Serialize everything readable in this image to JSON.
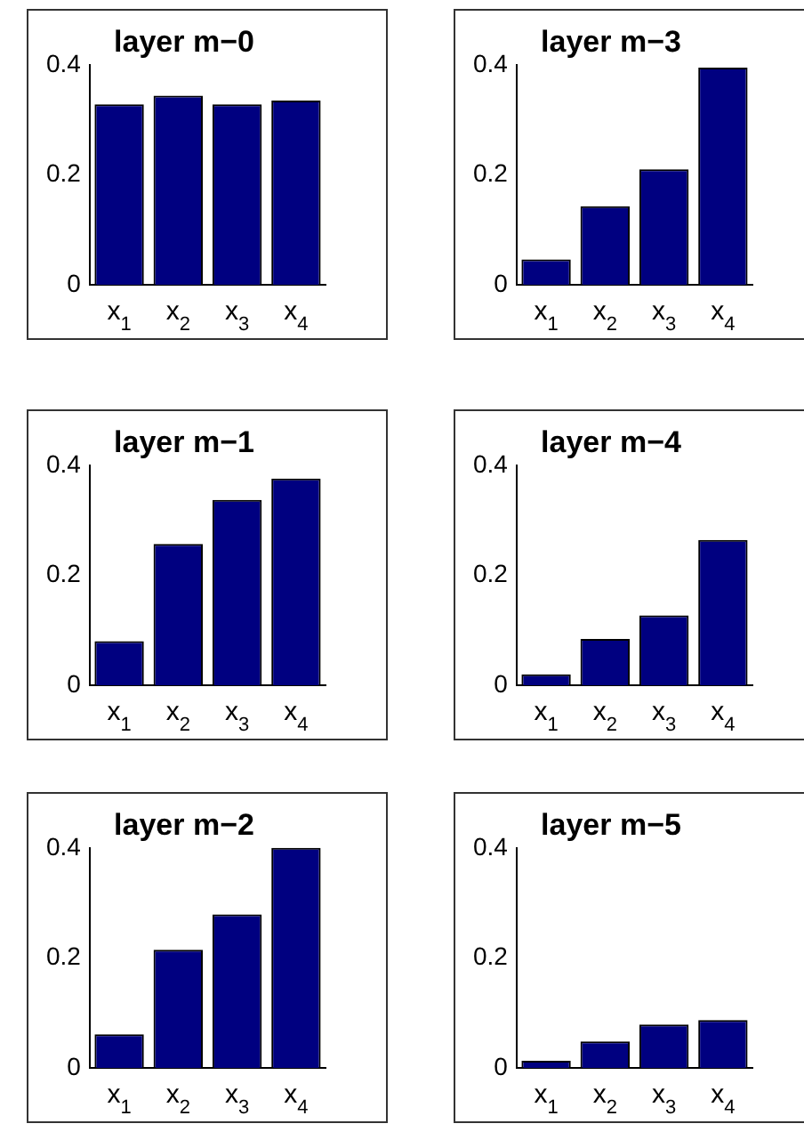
{
  "chart_data": [
    {
      "type": "bar",
      "title": "layer m−0",
      "categories": [
        "x$_{1}$",
        "x$_{2}$",
        "x$_{3}$",
        "x$_{4}$"
      ],
      "values": [
        0.328,
        0.344,
        0.328,
        0.335
      ],
      "color": "#000080",
      "ylim": [
        0,
        0.4
      ],
      "yticks": [
        0,
        0.2,
        0.4
      ]
    },
    {
      "type": "bar",
      "title": "layer m−3",
      "categories": [
        "x$_{1}$",
        "x$_{2}$",
        "x$_{3}$",
        "x$_{4}$"
      ],
      "values": [
        0.046,
        0.143,
        0.21,
        0.395
      ],
      "color": "#000080",
      "ylim": [
        0,
        0.4
      ],
      "yticks": [
        0,
        0.2,
        0.4
      ]
    },
    {
      "type": "bar",
      "title": "layer m−1",
      "categories": [
        "x$_{1}$",
        "x$_{2}$",
        "x$_{3}$",
        "x$_{4}$"
      ],
      "values": [
        0.08,
        0.257,
        0.337,
        0.376
      ],
      "color": "#000080",
      "ylim": [
        0,
        0.4
      ],
      "yticks": [
        0,
        0.2,
        0.4
      ]
    },
    {
      "type": "bar",
      "title": "layer m−4",
      "categories": [
        "x$_{1}$",
        "x$_{2}$",
        "x$_{3}$",
        "x$_{4}$"
      ],
      "values": [
        0.02,
        0.084,
        0.127,
        0.264
      ],
      "color": "#000080",
      "ylim": [
        0,
        0.4
      ],
      "yticks": [
        0,
        0.2,
        0.4
      ]
    },
    {
      "type": "bar",
      "title": "layer m−2",
      "categories": [
        "x$_{1}$",
        "x$_{2}$",
        "x$_{3}$",
        "x$_{4}$"
      ],
      "values": [
        0.061,
        0.215,
        0.279,
        0.4
      ],
      "color": "#000080",
      "ylim": [
        0,
        0.4
      ],
      "yticks": [
        0,
        0.2,
        0.4
      ]
    },
    {
      "type": "bar",
      "title": "layer m−5",
      "categories": [
        "x$_{1}$",
        "x$_{2}$",
        "x$_{3}$",
        "x$_{4}$"
      ],
      "values": [
        0.013,
        0.048,
        0.079,
        0.087
      ],
      "color": "#000080",
      "ylim": [
        0,
        0.4
      ],
      "yticks": [
        0,
        0.2,
        0.4
      ]
    }
  ]
}
